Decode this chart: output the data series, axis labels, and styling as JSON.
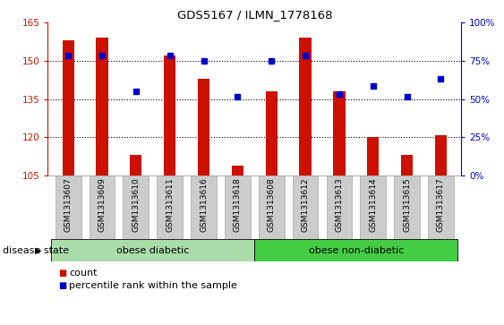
{
  "title": "GDS5167 / ILMN_1778168",
  "samples": [
    "GSM1313607",
    "GSM1313609",
    "GSM1313610",
    "GSM1313611",
    "GSM1313616",
    "GSM1313618",
    "GSM1313608",
    "GSM1313612",
    "GSM1313613",
    "GSM1313614",
    "GSM1313615",
    "GSM1313617"
  ],
  "bar_tops": [
    158,
    159,
    113,
    152,
    143,
    109,
    138,
    159,
    138,
    120,
    113,
    121
  ],
  "dot_left_vals": [
    152,
    152,
    138,
    152,
    150,
    136,
    150,
    152,
    137,
    140,
    136,
    143
  ],
  "bar_bottom": 105,
  "ylim_left": [
    105,
    165
  ],
  "ylim_right": [
    0,
    100
  ],
  "yticks_left": [
    105,
    120,
    135,
    150,
    165
  ],
  "yticks_right": [
    0,
    25,
    50,
    75,
    100
  ],
  "yticklabels_right": [
    "0%",
    "25%",
    "50%",
    "75%",
    "100%"
  ],
  "hgrid_vals": [
    120,
    135,
    150
  ],
  "groups": [
    {
      "label": "obese diabetic",
      "start": 0,
      "end": 6,
      "color": "#aaddaa"
    },
    {
      "label": "obese non-diabetic",
      "start": 6,
      "end": 12,
      "color": "#44cc44"
    }
  ],
  "disease_state_label": "disease state",
  "bar_color": "#cc1100",
  "dot_color": "#0000cc",
  "tick_bg_color": "#cccccc",
  "legend_items": [
    "count",
    "percentile rank within the sample"
  ]
}
